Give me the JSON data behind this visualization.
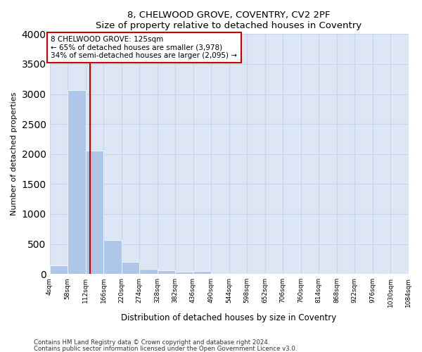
{
  "title1": "8, CHELWOOD GROVE, COVENTRY, CV2 2PF",
  "title2": "Size of property relative to detached houses in Coventry",
  "xlabel": "Distribution of detached houses by size in Coventry",
  "ylabel": "Number of detached properties",
  "bar_edges": [
    4,
    58,
    112,
    166,
    220,
    274,
    328,
    382,
    436,
    490,
    544,
    598,
    652,
    706,
    760,
    814,
    868,
    922,
    976,
    1030,
    1084
  ],
  "bar_heights": [
    145,
    3060,
    2060,
    560,
    200,
    80,
    55,
    40,
    50,
    0,
    0,
    0,
    0,
    0,
    0,
    0,
    0,
    0,
    0,
    0
  ],
  "bar_color": "#aec6e8",
  "vline_x": 125,
  "vline_color": "#cc0000",
  "ylim": [
    0,
    4000
  ],
  "xlim": [
    4,
    1084
  ],
  "annotation_text": "8 CHELWOOD GROVE: 125sqm\n← 65% of detached houses are smaller (3,978)\n34% of semi-detached houses are larger (2,095) →",
  "annotation_box_color": "#ffffff",
  "annotation_box_edge_color": "#cc0000",
  "grid_color": "#c8d4e8",
  "background_color": "#dce6f5",
  "footnote1": "Contains HM Land Registry data © Crown copyright and database right 2024.",
  "footnote2": "Contains public sector information licensed under the Open Government Licence v3.0."
}
